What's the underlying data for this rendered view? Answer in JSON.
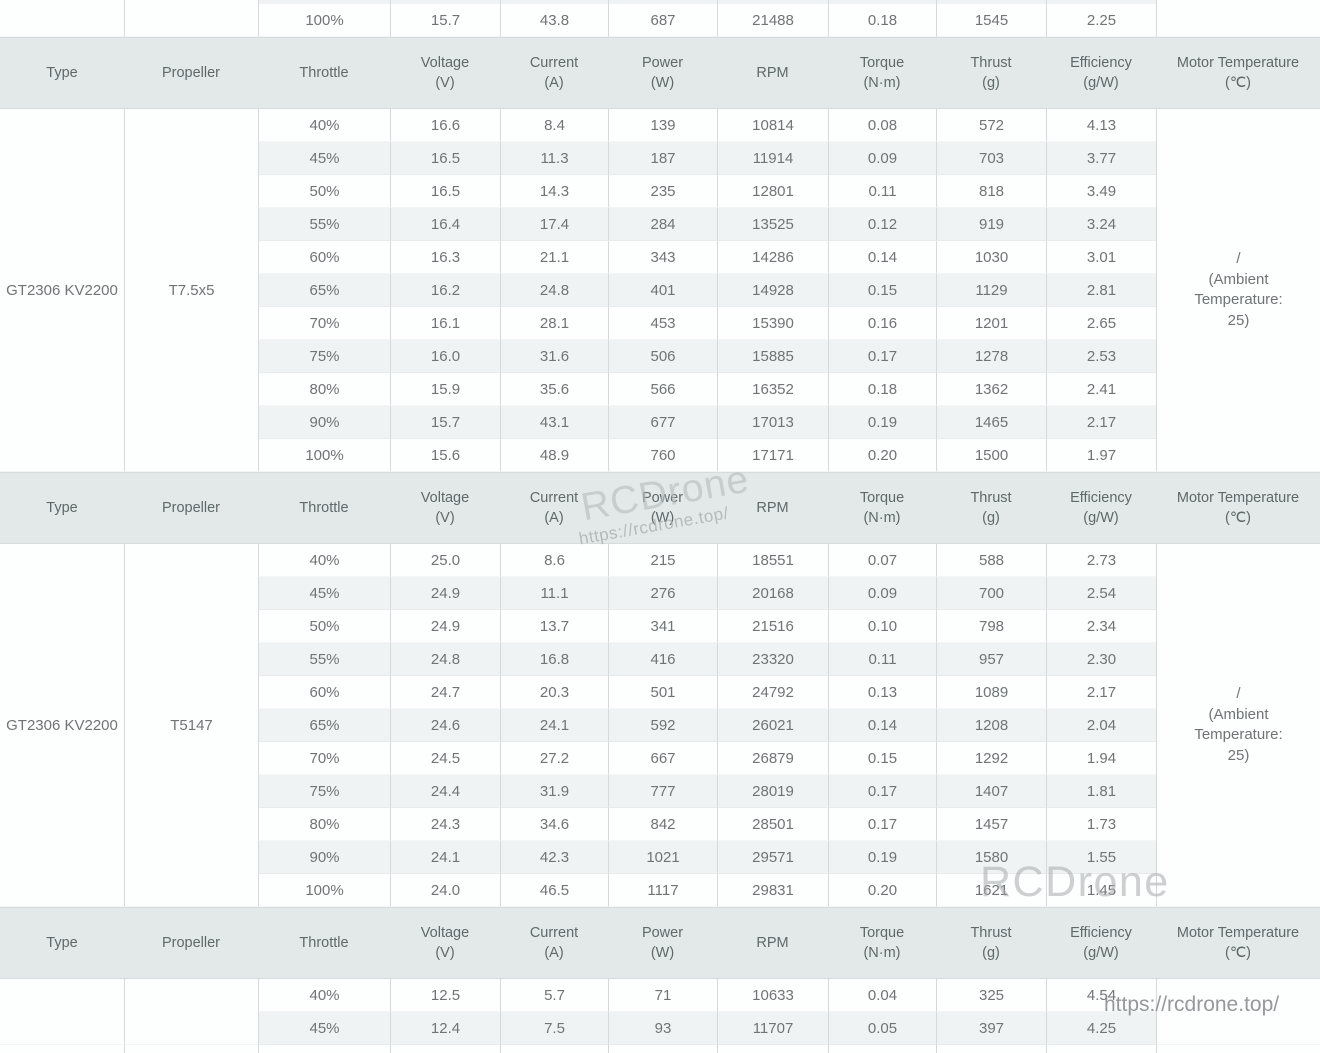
{
  "table": {
    "columns": [
      {
        "label": "Type",
        "unit": ""
      },
      {
        "label": "Propeller",
        "unit": ""
      },
      {
        "label": "Throttle",
        "unit": ""
      },
      {
        "label": "Voltage",
        "unit": "(V)"
      },
      {
        "label": "Current",
        "unit": "(A)"
      },
      {
        "label": "Power",
        "unit": "(W)"
      },
      {
        "label": "RPM",
        "unit": ""
      },
      {
        "label": "Torque",
        "unit": "(N·m)"
      },
      {
        "label": "Thrust",
        "unit": "(g)"
      },
      {
        "label": "Efficiency",
        "unit": "(g/W)"
      },
      {
        "label": "Motor Temperature",
        "unit": "(℃)"
      }
    ],
    "top_partial_section": {
      "type": "",
      "propeller": "",
      "motor_temperature_lines": [],
      "rows": [
        [
          "100%",
          "15.7",
          "43.8",
          "687",
          "21488",
          "0.18",
          "1545",
          "2.25"
        ]
      ]
    },
    "sections": [
      {
        "type": "GT2306 KV2200",
        "propeller": "T7.5x5",
        "motor_temperature_lines": [
          "/",
          "(Ambient",
          "Temperature:",
          "25)"
        ],
        "rows": [
          [
            "40%",
            "16.6",
            "8.4",
            "139",
            "10814",
            "0.08",
            "572",
            "4.13"
          ],
          [
            "45%",
            "16.5",
            "11.3",
            "187",
            "11914",
            "0.09",
            "703",
            "3.77"
          ],
          [
            "50%",
            "16.5",
            "14.3",
            "235",
            "12801",
            "0.11",
            "818",
            "3.49"
          ],
          [
            "55%",
            "16.4",
            "17.4",
            "284",
            "13525",
            "0.12",
            "919",
            "3.24"
          ],
          [
            "60%",
            "16.3",
            "21.1",
            "343",
            "14286",
            "0.14",
            "1030",
            "3.01"
          ],
          [
            "65%",
            "16.2",
            "24.8",
            "401",
            "14928",
            "0.15",
            "1129",
            "2.81"
          ],
          [
            "70%",
            "16.1",
            "28.1",
            "453",
            "15390",
            "0.16",
            "1201",
            "2.65"
          ],
          [
            "75%",
            "16.0",
            "31.6",
            "506",
            "15885",
            "0.17",
            "1278",
            "2.53"
          ],
          [
            "80%",
            "15.9",
            "35.6",
            "566",
            "16352",
            "0.18",
            "1362",
            "2.41"
          ],
          [
            "90%",
            "15.7",
            "43.1",
            "677",
            "17013",
            "0.19",
            "1465",
            "2.17"
          ],
          [
            "100%",
            "15.6",
            "48.9",
            "760",
            "17171",
            "0.20",
            "1500",
            "1.97"
          ]
        ]
      },
      {
        "type": "GT2306 KV2200",
        "propeller": "T5147",
        "motor_temperature_lines": [
          "/",
          "(Ambient",
          "Temperature:",
          "25)"
        ],
        "rows": [
          [
            "40%",
            "25.0",
            "8.6",
            "215",
            "18551",
            "0.07",
            "588",
            "2.73"
          ],
          [
            "45%",
            "24.9",
            "11.1",
            "276",
            "20168",
            "0.09",
            "700",
            "2.54"
          ],
          [
            "50%",
            "24.9",
            "13.7",
            "341",
            "21516",
            "0.10",
            "798",
            "2.34"
          ],
          [
            "55%",
            "24.8",
            "16.8",
            "416",
            "23320",
            "0.11",
            "957",
            "2.30"
          ],
          [
            "60%",
            "24.7",
            "20.3",
            "501",
            "24792",
            "0.13",
            "1089",
            "2.17"
          ],
          [
            "65%",
            "24.6",
            "24.1",
            "592",
            "26021",
            "0.14",
            "1208",
            "2.04"
          ],
          [
            "70%",
            "24.5",
            "27.2",
            "667",
            "26879",
            "0.15",
            "1292",
            "1.94"
          ],
          [
            "75%",
            "24.4",
            "31.9",
            "777",
            "28019",
            "0.17",
            "1407",
            "1.81"
          ],
          [
            "80%",
            "24.3",
            "34.6",
            "842",
            "28501",
            "0.17",
            "1457",
            "1.73"
          ],
          [
            "90%",
            "24.1",
            "42.3",
            "1021",
            "29571",
            "0.19",
            "1580",
            "1.55"
          ],
          [
            "100%",
            "24.0",
            "46.5",
            "1117",
            "29831",
            "0.20",
            "1621",
            "1.45"
          ]
        ]
      }
    ],
    "bottom_partial_section": {
      "type": "",
      "propeller": "",
      "motor_temperature_lines": [],
      "rows": [
        [
          "40%",
          "12.5",
          "5.7",
          "71",
          "10633",
          "0.04",
          "325",
          "4.54"
        ],
        [
          "45%",
          "12.4",
          "7.5",
          "93",
          "11707",
          "0.05",
          "397",
          "4.25"
        ]
      ]
    }
  },
  "watermarks": {
    "brand": "RCDrone",
    "url": "https://rcdrone.top/"
  },
  "colors": {
    "header_bg": "#e3e8e8",
    "stripe_bg": "#f0f3f3",
    "row_bg": "#fdfefe",
    "border": "#d4d9d9",
    "text": "#6f7475",
    "header_text": "#5f696b",
    "watermark": "#b7bcbe"
  }
}
